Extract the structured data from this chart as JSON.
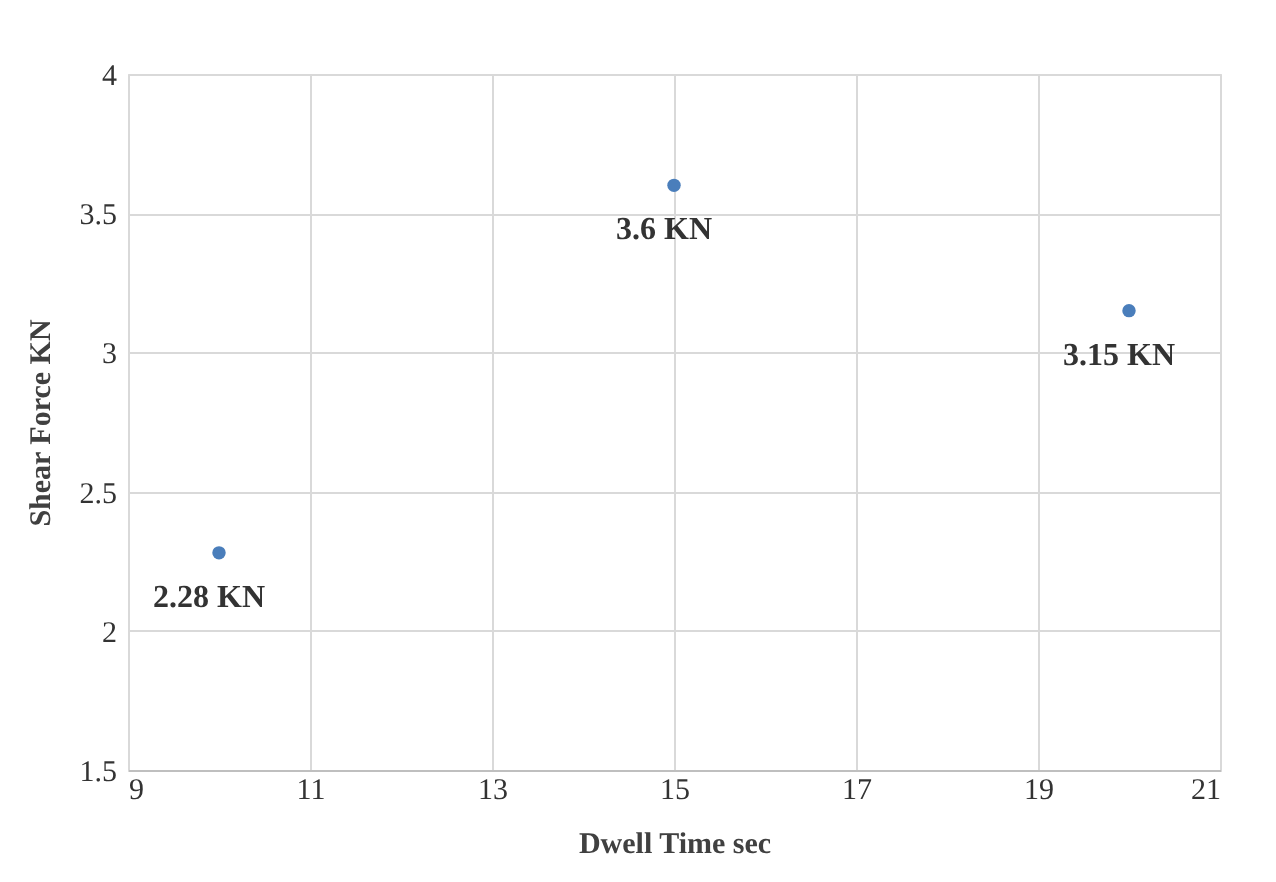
{
  "chart_data": {
    "type": "scatter",
    "xlabel": "Dwell Time   sec",
    "ylabel": "Shear Force KN",
    "x": [
      10,
      15,
      20
    ],
    "series": [
      {
        "color": "#4a7ebb",
        "values": [
          2.28,
          3.6,
          3.15
        ],
        "value_labels": [
          "2.28 KN",
          "3.6 KN",
          "3.15 KN"
        ]
      }
    ],
    "xlim": [
      9,
      21
    ],
    "xticks": [
      9,
      11,
      13,
      15,
      17,
      19,
      21
    ],
    "ylim": [
      1.5,
      4
    ],
    "yticks": [
      1.5,
      2,
      2.5,
      3,
      3.5,
      4
    ],
    "grid": true,
    "marker": "circle"
  }
}
